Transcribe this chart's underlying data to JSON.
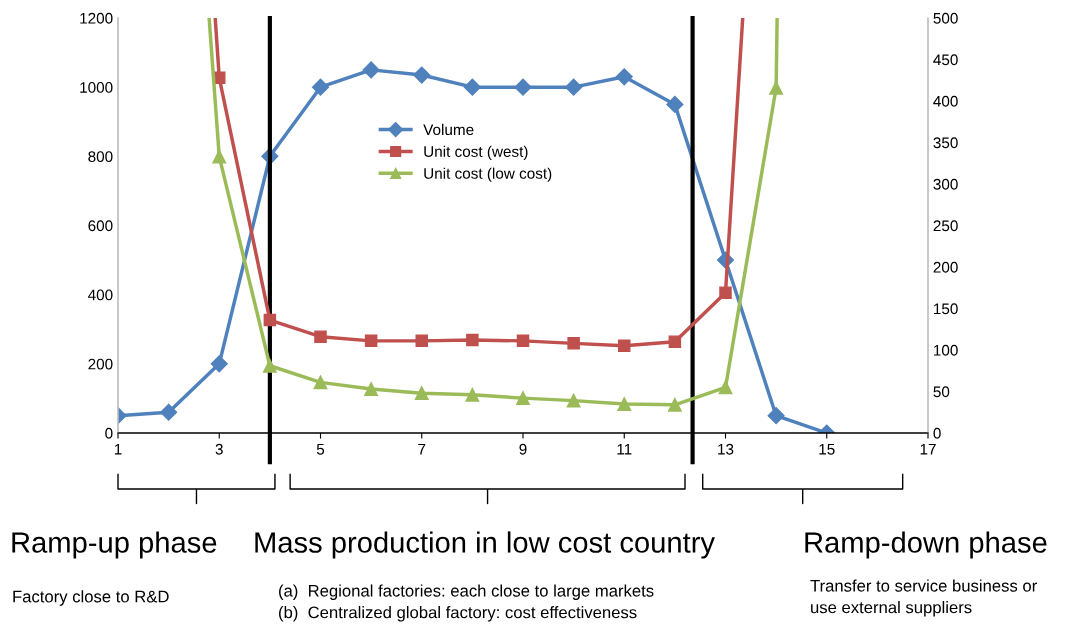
{
  "chart_data": {
    "type": "line",
    "series": [
      {
        "name": "Volume",
        "color": "#4f81bd",
        "marker": "diamond",
        "x": [
          1,
          2,
          3,
          4,
          5,
          6,
          7,
          8,
          9,
          10,
          11,
          12,
          13,
          14,
          15
        ],
        "values": [
          50,
          60,
          200,
          800,
          1000,
          1050,
          1035,
          1000,
          1000,
          1000,
          1030,
          950,
          500,
          50,
          0
        ]
      },
      {
        "name": "Unit cost (west)",
        "color": "#c0504d",
        "marker": "square",
        "axis": "y2",
        "x": [
          3,
          4,
          5,
          6,
          7,
          8,
          9,
          10,
          11,
          12,
          13
        ],
        "values": [
          428,
          136,
          116,
          111,
          111,
          112,
          111,
          108,
          105,
          110,
          169
        ]
      },
      {
        "name": "Unit cost (low cost)",
        "color": "#9bbb59",
        "marker": "triangle",
        "axis": "y2",
        "x": [
          3,
          4,
          5,
          6,
          7,
          8,
          9,
          10,
          11,
          12,
          13,
          14
        ],
        "values": [
          333,
          81,
          61,
          53,
          48,
          46,
          42,
          39,
          35,
          34,
          55,
          416
        ]
      },
      {
        "color": "#c0504d",
        "marker": "none",
        "axis": "y2",
        "x": [
          2.92,
          3
        ],
        "values": [
          500,
          428
        ]
      },
      {
        "color": "#c0504d",
        "marker": "none",
        "axis": "y2",
        "x": [
          13,
          13.34
        ],
        "values": [
          169,
          500
        ]
      },
      {
        "color": "#9bbb59",
        "marker": "none",
        "axis": "y2",
        "x": [
          2.8,
          3
        ],
        "values": [
          500,
          333
        ]
      },
      {
        "color": "#9bbb59",
        "marker": "none",
        "axis": "y2",
        "x": [
          14,
          14.02
        ],
        "values": [
          416,
          500
        ]
      }
    ],
    "xlim": [
      1,
      17
    ],
    "xticks": [
      1,
      3,
      5,
      7,
      9,
      11,
      13,
      15,
      17
    ],
    "ylim": [
      0,
      1200
    ],
    "yticks": [
      0,
      200,
      400,
      600,
      800,
      1000,
      1200
    ],
    "y2lim": [
      0,
      500
    ],
    "y2ticks": [
      0,
      50,
      100,
      150,
      200,
      250,
      300,
      350,
      400,
      450,
      500
    ],
    "ref_lines": [
      {
        "axis": "x",
        "value": 4,
        "color": "#000000"
      },
      {
        "axis": "x",
        "value": 12.35,
        "color": "#000000"
      }
    ],
    "legend": "center",
    "annotations": [
      "Ramp-up phase",
      "Factory close to R&D",
      "Mass production in low cost country",
      "(a)  Regional factories: each close to large markets\n(b)  Centralized global factory: cost effectiveness",
      "Ramp-down phase",
      "Transfer to service business or\nuse external suppliers"
    ]
  }
}
